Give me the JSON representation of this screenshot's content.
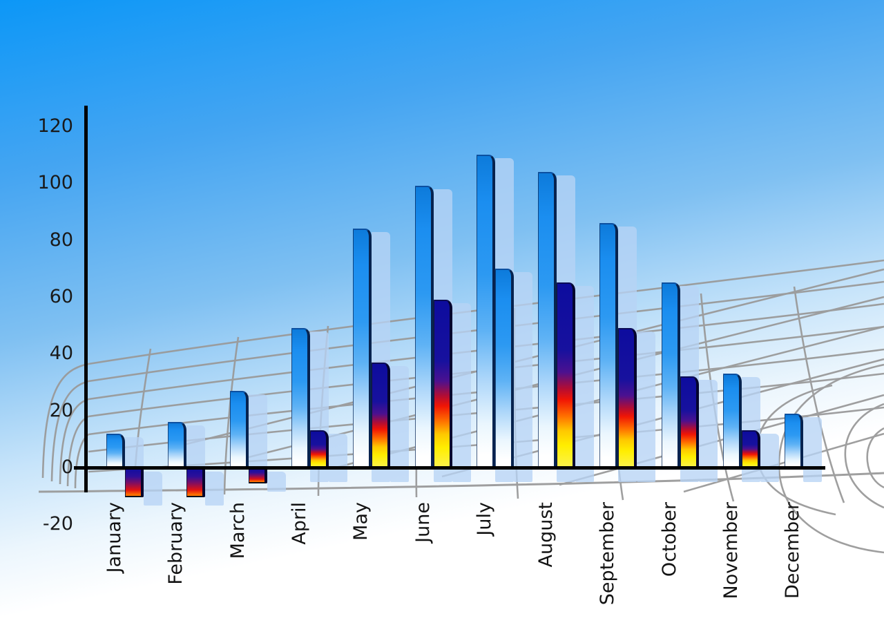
{
  "chart_data": {
    "type": "bar",
    "title": "",
    "categories": [
      "January",
      "February",
      "March",
      "April",
      "May",
      "June",
      "July",
      "August",
      "September",
      "October",
      "November",
      "December"
    ],
    "series": [
      {
        "name": "primary-blue",
        "style": "blue",
        "values": [
          12,
          16,
          27,
          49,
          84,
          99,
          110,
          104,
          86,
          65,
          33,
          19
        ]
      },
      {
        "name": "secondary",
        "values": [
          -10,
          -10,
          -5,
          13,
          37,
          59,
          70,
          65,
          49,
          32,
          13,
          null
        ],
        "styles": [
          "fire",
          "fire",
          "fire",
          "fire",
          "fire",
          "fire",
          "blue",
          "fire",
          "fire",
          "fire",
          "fire",
          null
        ]
      }
    ],
    "y_tick_labels": [
      "120",
      "100",
      "80",
      "60",
      "40",
      "20",
      "0",
      "-20"
    ],
    "y_ticks": [
      120,
      100,
      80,
      60,
      40,
      20,
      0,
      -20
    ],
    "ylim": [
      -20,
      120
    ],
    "baseline_value": 0,
    "xlabel": "",
    "ylabel": "",
    "legend": "none",
    "grid": "decorative gray perspective net behind bars"
  },
  "style": {
    "sky_top_color": "#0c97f7",
    "sky_bottom_color": "#ffffff",
    "bar_blue_color": "#1b8ef0",
    "bar_fire_colors": [
      "#0d0c9e",
      "#f01505",
      "#ffee00"
    ],
    "bar_shadow_color": "#b7d3f5",
    "grid_line_color": "#9a9a9a",
    "axis_color": "#000000",
    "label_color": "#1a1a1a"
  }
}
